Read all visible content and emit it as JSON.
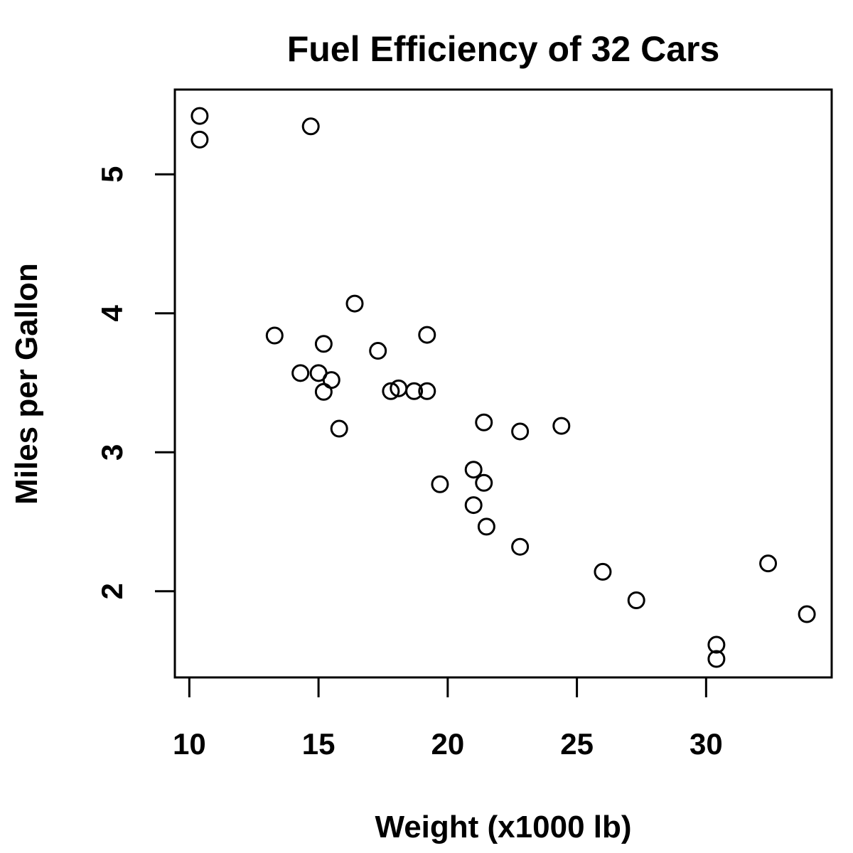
{
  "chart_data": {
    "type": "scatter",
    "title": "Fuel Efficiency of 32 Cars",
    "xlabel": "Weight (x1000 lb)",
    "ylabel": "Miles per Gallon",
    "xlim": [
      9.44,
      34.86
    ],
    "ylim": [
      1.38,
      5.61
    ],
    "xticks": [
      10,
      15,
      20,
      25,
      30
    ],
    "yticks": [
      2,
      3,
      4,
      5
    ],
    "grid": false,
    "points": [
      {
        "x": 10.4,
        "y": 5.42
      },
      {
        "x": 10.4,
        "y": 5.25
      },
      {
        "x": 14.7,
        "y": 5.345
      },
      {
        "x": 13.3,
        "y": 3.84
      },
      {
        "x": 14.3,
        "y": 3.57
      },
      {
        "x": 15.0,
        "y": 3.57
      },
      {
        "x": 15.2,
        "y": 3.78
      },
      {
        "x": 15.2,
        "y": 3.435
      },
      {
        "x": 15.5,
        "y": 3.52
      },
      {
        "x": 15.8,
        "y": 3.17
      },
      {
        "x": 16.4,
        "y": 4.07
      },
      {
        "x": 17.3,
        "y": 3.73
      },
      {
        "x": 17.8,
        "y": 3.44
      },
      {
        "x": 18.1,
        "y": 3.46
      },
      {
        "x": 18.7,
        "y": 3.44
      },
      {
        "x": 19.2,
        "y": 3.845
      },
      {
        "x": 19.2,
        "y": 3.44
      },
      {
        "x": 19.7,
        "y": 2.77
      },
      {
        "x": 21.0,
        "y": 2.875
      },
      {
        "x": 21.0,
        "y": 2.62
      },
      {
        "x": 21.4,
        "y": 3.215
      },
      {
        "x": 21.4,
        "y": 2.78
      },
      {
        "x": 21.5,
        "y": 2.465
      },
      {
        "x": 22.8,
        "y": 3.15
      },
      {
        "x": 22.8,
        "y": 2.32
      },
      {
        "x": 24.4,
        "y": 3.19
      },
      {
        "x": 26.0,
        "y": 2.14
      },
      {
        "x": 27.3,
        "y": 1.935
      },
      {
        "x": 30.4,
        "y": 1.615
      },
      {
        "x": 30.4,
        "y": 1.513
      },
      {
        "x": 32.4,
        "y": 2.2
      },
      {
        "x": 33.9,
        "y": 1.835
      }
    ]
  }
}
